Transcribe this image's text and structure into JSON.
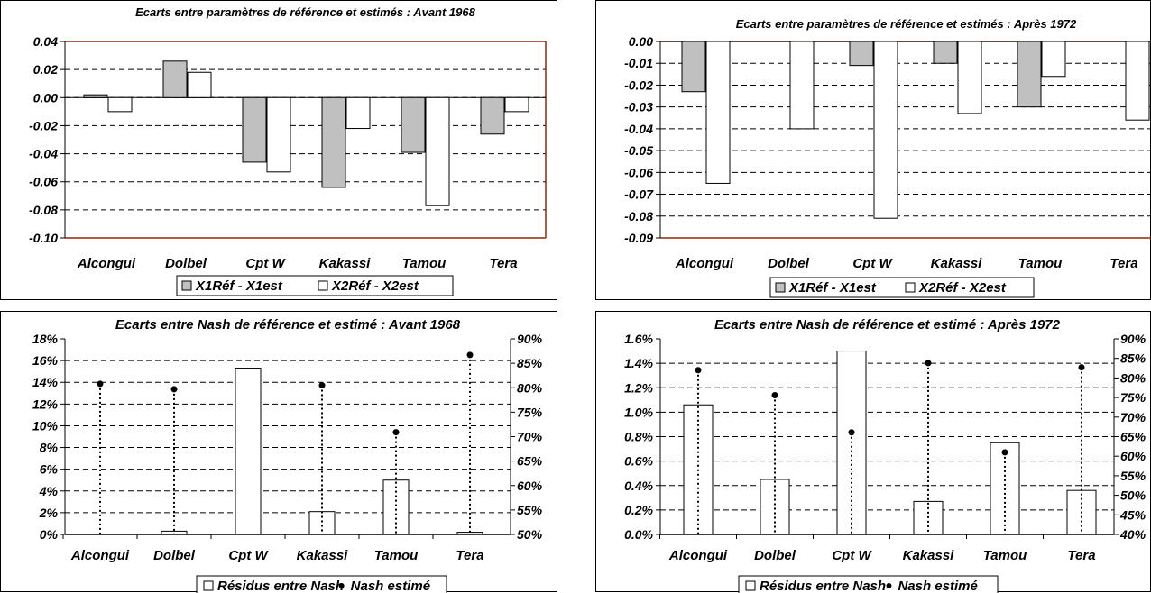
{
  "chart_data": [
    {
      "type": "bar",
      "title": "Ecarts entre paramètres de référence et estimés : Avant 1968",
      "categories": [
        "Alcongui",
        "Dolbel",
        "Cpt W",
        "Kakassi",
        "Tamou",
        "Tera"
      ],
      "series": [
        {
          "name": "X1Réf - X1est",
          "color": "#c0c0c0",
          "values": [
            0.002,
            0.026,
            -0.046,
            -0.064,
            -0.039,
            -0.026
          ]
        },
        {
          "name": "X2Réf - X2est",
          "color": "#ffffff",
          "values": [
            -0.01,
            0.018,
            -0.053,
            -0.022,
            -0.077,
            -0.01
          ]
        }
      ],
      "ylim": [
        -0.1,
        0.04
      ],
      "yticks": [
        "0.04",
        "0.02",
        "0.00",
        "-0.02",
        "-0.04",
        "-0.06",
        "-0.08",
        "-0.10"
      ],
      "grid": true,
      "legend": "bottom"
    },
    {
      "type": "bar",
      "title": "Ecarts entre paramètres de référence et estimés : Après 1972",
      "categories": [
        "Alcongui",
        "Dolbel",
        "Cpt W",
        "Kakassi",
        "Tamou",
        "Tera"
      ],
      "series": [
        {
          "name": "X1Réf - X1est",
          "color": "#c0c0c0",
          "values": [
            -0.023,
            0.0,
            -0.011,
            -0.01,
            -0.03,
            0.0
          ]
        },
        {
          "name": "X2Réf - X2est",
          "color": "#ffffff",
          "values": [
            -0.065,
            -0.04,
            -0.081,
            -0.033,
            -0.016,
            -0.036
          ]
        }
      ],
      "ylim": [
        -0.09,
        0.0
      ],
      "yticks": [
        "0.00",
        "-0.01",
        "-0.02",
        "-0.03",
        "-0.04",
        "-0.05",
        "-0.06",
        "-0.07",
        "-0.08",
        "-0.09"
      ],
      "grid": true,
      "legend": "bottom"
    },
    {
      "type": "bar",
      "title": "Ecarts entre Nash de référence et estimé : Avant 1968",
      "categories": [
        "Alcongui",
        "Dolbel",
        "Cpt W",
        "Kakassi",
        "Tamou",
        "Tera"
      ],
      "series": [
        {
          "name": "Résidus entre Nash",
          "axis": "left",
          "color": "#ffffff",
          "values": [
            0.0,
            0.3,
            15.3,
            2.1,
            5.0,
            0.2
          ]
        },
        {
          "name": "Nash estimé",
          "axis": "right",
          "color": "#000000",
          "values": [
            80.8,
            79.7,
            null,
            80.5,
            70.9,
            86.7
          ]
        }
      ],
      "ylim": [
        0,
        18
      ],
      "y2lim": [
        50,
        90
      ],
      "yticks": [
        "18%",
        "16%",
        "14%",
        "12%",
        "10%",
        "8%",
        "6%",
        "4%",
        "2%",
        "0%"
      ],
      "y2ticks": [
        "90%",
        "85%",
        "80%",
        "75%",
        "70%",
        "65%",
        "60%",
        "55%",
        "50%"
      ],
      "grid": true,
      "legend": "bottom"
    },
    {
      "type": "bar",
      "title": "Ecarts entre Nash de référence et estimé : Après 1972",
      "categories": [
        "Alcongui",
        "Dolbel",
        "Cpt W",
        "Kakassi",
        "Tamou",
        "Tera"
      ],
      "series": [
        {
          "name": "Résidus entre Nash",
          "axis": "left",
          "color": "#ffffff",
          "values": [
            1.06,
            0.45,
            1.5,
            0.27,
            0.75,
            0.36
          ]
        },
        {
          "name": "Nash estimé",
          "axis": "right",
          "color": "#000000",
          "values": [
            82.0,
            75.6,
            66.1,
            83.8,
            61.0,
            82.7
          ]
        }
      ],
      "ylim": [
        0,
        1.6
      ],
      "y2lim": [
        40,
        90
      ],
      "yticks": [
        "1.6%",
        "1.4%",
        "1.2%",
        "1.0%",
        "0.8%",
        "0.6%",
        "0.4%",
        "0.2%",
        "0.0%"
      ],
      "y2ticks": [
        "90%",
        "85%",
        "80%",
        "75%",
        "70%",
        "65%",
        "60%",
        "55%",
        "50%",
        "45%",
        "40%"
      ],
      "grid": true,
      "legend": "bottom"
    }
  ]
}
